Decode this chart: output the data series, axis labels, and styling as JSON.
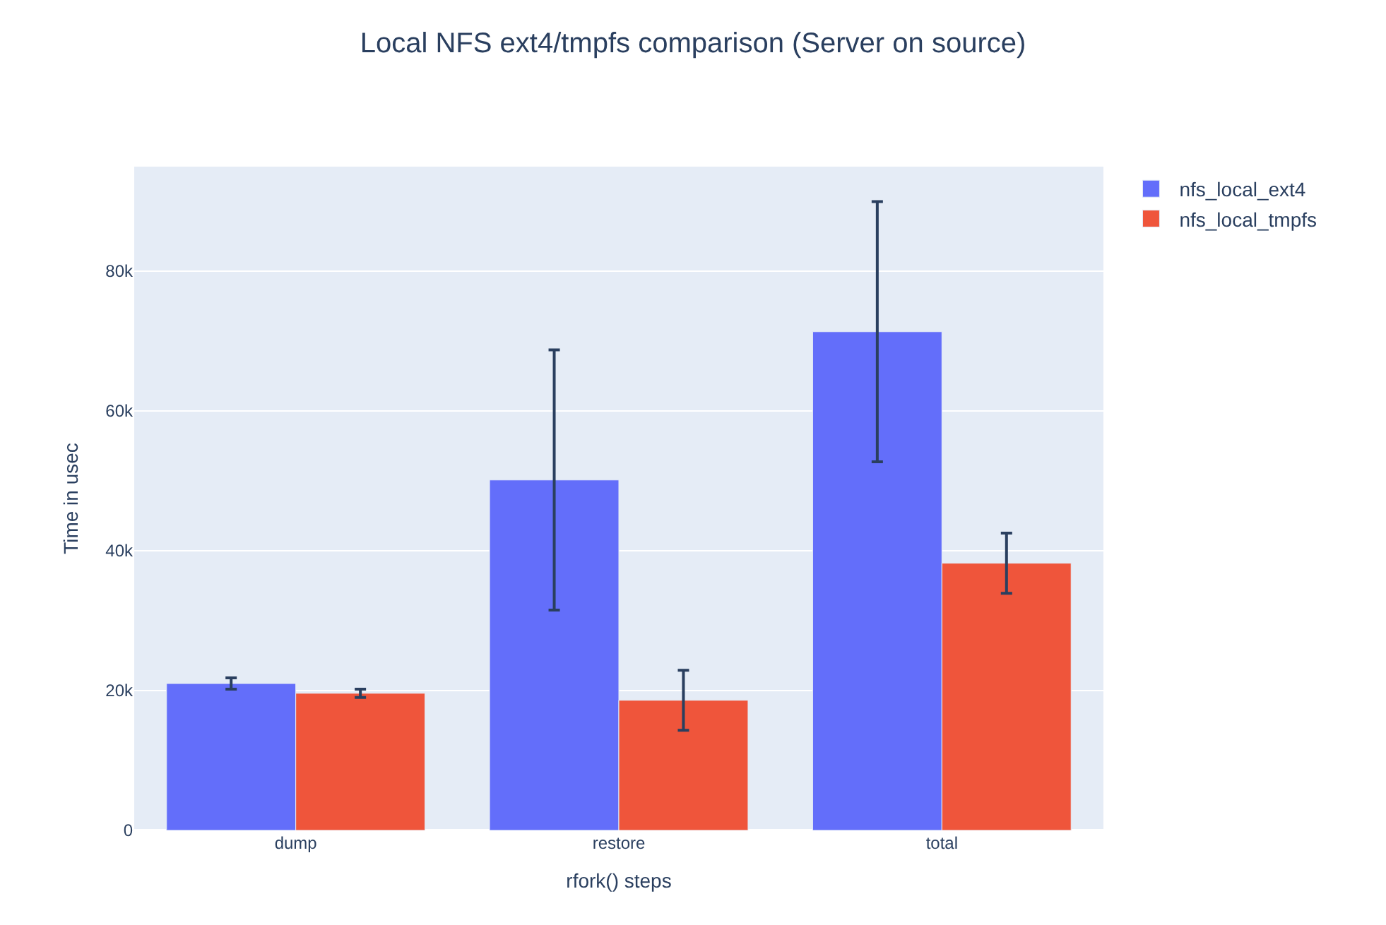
{
  "chart_data": {
    "type": "bar",
    "title": "Local NFS ext4/tmpfs comparison (Server on source)",
    "xlabel": "rfork() steps",
    "ylabel": "Time in usec",
    "categories": [
      "dump",
      "restore",
      "total"
    ],
    "series": [
      {
        "name": "nfs_local_ext4",
        "color": "#636efa",
        "values": [
          21000,
          50100,
          71300
        ],
        "errors": [
          800,
          18600,
          18600
        ]
      },
      {
        "name": "nfs_local_tmpfs",
        "color": "#ef553b",
        "values": [
          19600,
          18600,
          38200
        ],
        "errors": [
          600,
          4300,
          4300
        ]
      }
    ],
    "ylim": [
      0,
      94900
    ],
    "yticks": [
      0,
      {
        "value": 20000,
        "label": "20k"
      },
      {
        "value": 40000,
        "label": "40k"
      },
      {
        "value": 60000,
        "label": "60k"
      },
      {
        "value": 80000,
        "label": "80k"
      }
    ],
    "grid": "y",
    "legend": "top right"
  }
}
